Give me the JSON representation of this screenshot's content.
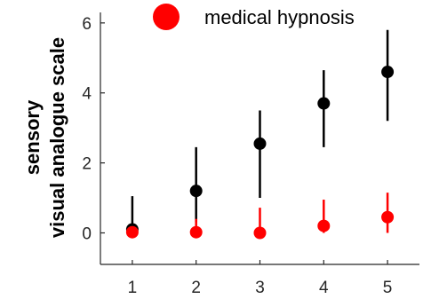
{
  "chart_data": {
    "type": "scatter",
    "title": "",
    "xlabel": "",
    "ylabel_lines": [
      "sensory",
      "visual analogue scale"
    ],
    "x": [
      1,
      2,
      3,
      4,
      5
    ],
    "xticks": [
      "1",
      "2",
      "3",
      "4",
      "5"
    ],
    "xlim": [
      0.5,
      5.5
    ],
    "yticks": [
      "0",
      "2",
      "4",
      "6"
    ],
    "ylim": [
      -0.9,
      6.3
    ],
    "grid": false,
    "legend": {
      "placement": "top",
      "entries": [
        "medical hypnosis"
      ]
    },
    "series": [
      {
        "name": "",
        "color": "#000000",
        "values": [
          0.1,
          1.2,
          2.55,
          3.7,
          4.6
        ],
        "err_low": [
          0.1,
          0.3,
          1.0,
          2.45,
          3.2
        ],
        "err_high": [
          1.05,
          2.45,
          3.5,
          4.65,
          5.8
        ]
      },
      {
        "name": "medical hypnosis",
        "color": "#ff0000",
        "values": [
          0.02,
          0.02,
          0.0,
          0.2,
          0.45
        ],
        "err_low": [
          0.0,
          0.0,
          0.0,
          0.0,
          0.0
        ],
        "err_high": [
          0.1,
          0.4,
          0.72,
          0.95,
          1.15
        ]
      }
    ]
  }
}
